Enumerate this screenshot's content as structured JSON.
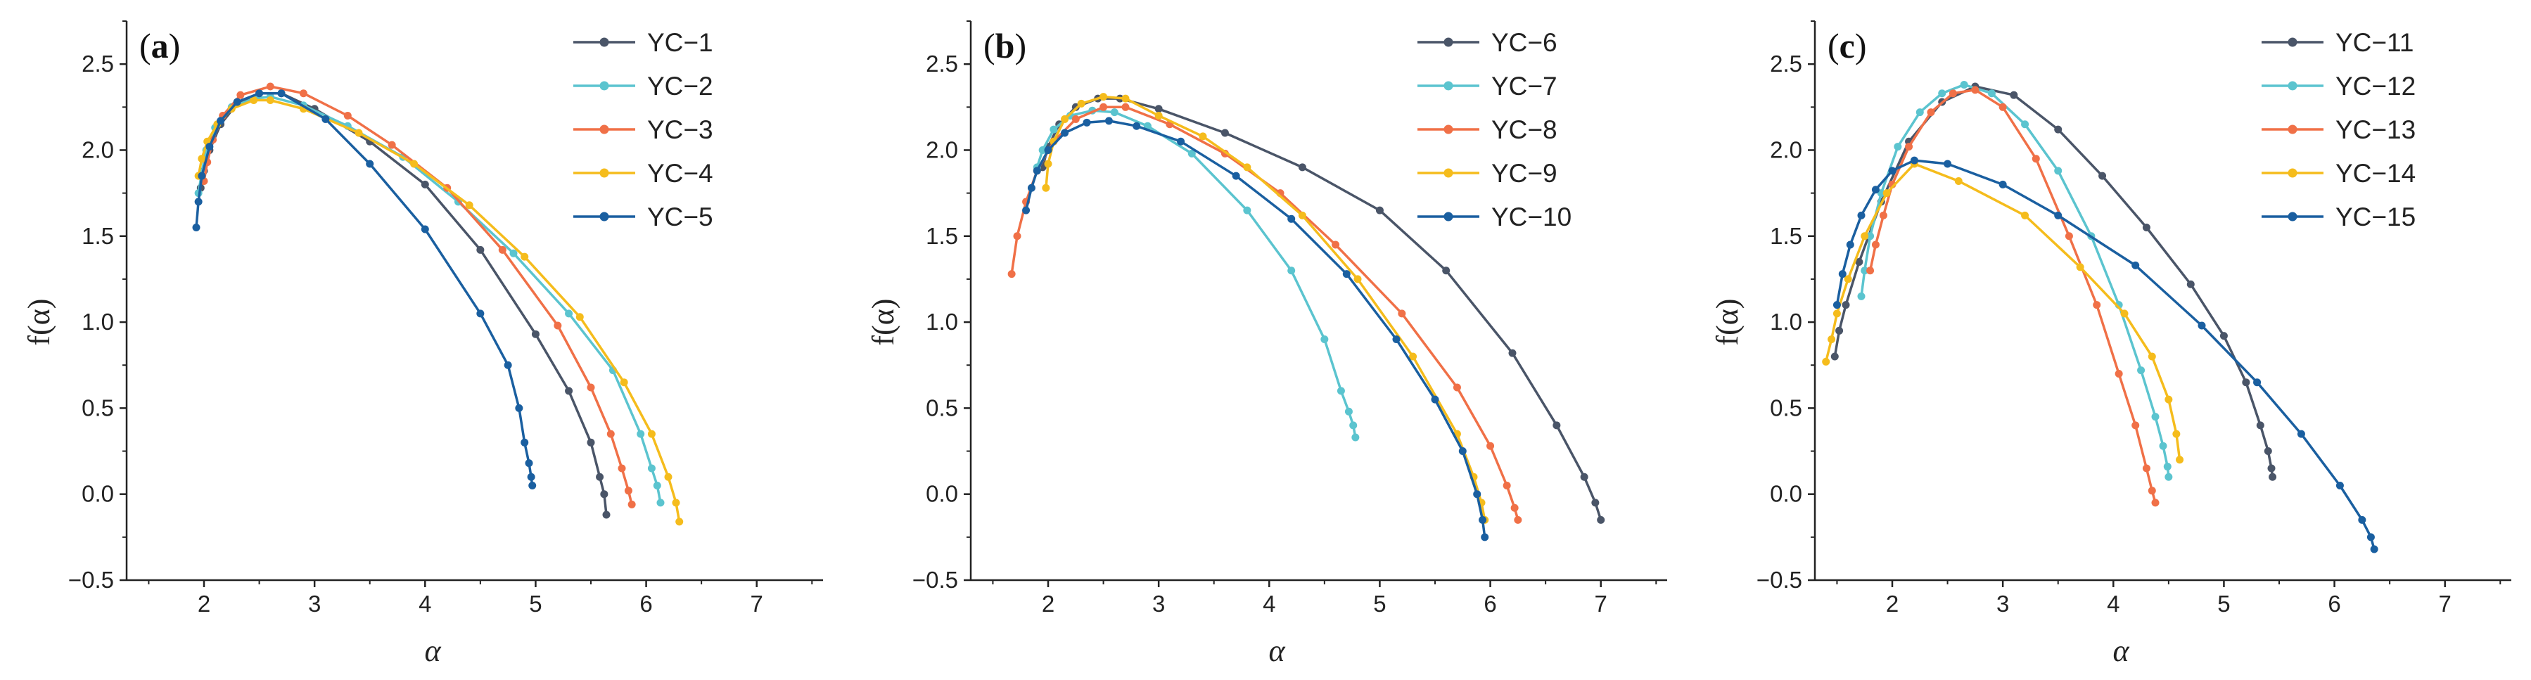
{
  "figure": {
    "colors": [
      "#4a5568",
      "#5bc4cf",
      "#f07047",
      "#f5bc1c",
      "#1a5fa0"
    ],
    "panels": [
      {
        "label": "(a)",
        "label_open": "(",
        "label_letter": "a",
        "label_close": ")",
        "xlabel": "α",
        "ylabel": "f(α)",
        "xlim": [
          1.3,
          7.6
        ],
        "ylim": [
          -0.5,
          2.75
        ],
        "xticks": [
          2,
          3,
          4,
          5,
          6,
          7
        ],
        "xtick_labels": [
          "2",
          "3",
          "4",
          "5",
          "6",
          "7"
        ],
        "yticks": [
          -0.5,
          0,
          0.5,
          1,
          1.5,
          2,
          2.5
        ],
        "ytick_labels": [
          "−0.5",
          "0.0",
          "0.5",
          "1.0",
          "1.5",
          "2.0",
          "2.5"
        ],
        "series": [
          {
            "name": "YC−1",
            "x": [
              1.97,
              2.0,
              2.05,
              2.15,
              2.3,
              2.5,
              2.7,
              3.0,
              3.5,
              4.0,
              4.5,
              5.0,
              5.3,
              5.5,
              5.58,
              5.62,
              5.64
            ],
            "y": [
              1.78,
              1.88,
              2.0,
              2.15,
              2.27,
              2.33,
              2.33,
              2.24,
              2.05,
              1.8,
              1.42,
              0.93,
              0.6,
              0.3,
              0.1,
              0.0,
              -0.12
            ]
          },
          {
            "name": "YC−2",
            "x": [
              1.95,
              1.98,
              2.02,
              2.1,
              2.25,
              2.45,
              2.6,
              2.9,
              3.3,
              3.8,
              4.3,
              4.8,
              5.3,
              5.7,
              5.95,
              6.05,
              6.1,
              6.13
            ],
            "y": [
              1.75,
              1.87,
              2.0,
              2.13,
              2.25,
              2.3,
              2.31,
              2.26,
              2.14,
              1.96,
              1.7,
              1.4,
              1.05,
              0.72,
              0.35,
              0.15,
              0.05,
              -0.05
            ]
          },
          {
            "name": "YC−3",
            "x": [
              2.0,
              2.03,
              2.08,
              2.17,
              2.33,
              2.6,
              2.9,
              3.3,
              3.7,
              4.2,
              4.7,
              5.2,
              5.5,
              5.68,
              5.78,
              5.84,
              5.87
            ],
            "y": [
              1.82,
              1.93,
              2.06,
              2.2,
              2.32,
              2.37,
              2.33,
              2.2,
              2.03,
              1.78,
              1.42,
              0.98,
              0.62,
              0.35,
              0.15,
              0.02,
              -0.06
            ]
          },
          {
            "name": "YC−4",
            "x": [
              1.95,
              1.98,
              2.03,
              2.12,
              2.25,
              2.45,
              2.6,
              2.9,
              3.4,
              3.9,
              4.4,
              4.9,
              5.4,
              5.8,
              6.05,
              6.2,
              6.27,
              6.3
            ],
            "y": [
              1.85,
              1.95,
              2.05,
              2.15,
              2.24,
              2.29,
              2.29,
              2.24,
              2.1,
              1.92,
              1.68,
              1.38,
              1.03,
              0.65,
              0.35,
              0.1,
              -0.05,
              -0.16
            ]
          },
          {
            "name": "YC−5",
            "x": [
              1.93,
              1.95,
              1.98,
              2.05,
              2.15,
              2.3,
              2.5,
              2.7,
              3.1,
              3.5,
              4.0,
              4.5,
              4.75,
              4.85,
              4.9,
              4.94,
              4.96,
              4.97
            ],
            "y": [
              1.55,
              1.7,
              1.85,
              2.02,
              2.17,
              2.28,
              2.33,
              2.33,
              2.18,
              1.92,
              1.54,
              1.05,
              0.75,
              0.5,
              0.3,
              0.18,
              0.1,
              0.05
            ]
          }
        ]
      },
      {
        "label": "(b)",
        "label_open": "(",
        "label_letter": "b",
        "label_close": ")",
        "xlabel": "α",
        "ylabel": "f(α)",
        "xlim": [
          1.3,
          7.6
        ],
        "ylim": [
          -0.5,
          2.75
        ],
        "xticks": [
          2,
          3,
          4,
          5,
          6,
          7
        ],
        "xtick_labels": [
          "2",
          "3",
          "4",
          "5",
          "6",
          "7"
        ],
        "yticks": [
          -0.5,
          0,
          0.5,
          1,
          1.5,
          2,
          2.5
        ],
        "ytick_labels": [
          "−0.5",
          "0.0",
          "0.5",
          "1.0",
          "1.5",
          "2.0",
          "2.5"
        ],
        "series": [
          {
            "name": "YC−6",
            "x": [
              1.95,
              2.0,
              2.1,
              2.25,
              2.45,
              2.65,
              3.0,
              3.6,
              4.3,
              5.0,
              5.6,
              6.2,
              6.6,
              6.85,
              6.95,
              7.0
            ],
            "y": [
              1.9,
              2.02,
              2.15,
              2.25,
              2.3,
              2.3,
              2.24,
              2.1,
              1.9,
              1.65,
              1.3,
              0.82,
              0.4,
              0.1,
              -0.05,
              -0.15
            ]
          },
          {
            "name": "YC−7",
            "x": [
              1.9,
              1.95,
              2.05,
              2.2,
              2.4,
              2.6,
              2.9,
              3.3,
              3.8,
              4.2,
              4.5,
              4.65,
              4.72,
              4.76,
              4.78
            ],
            "y": [
              1.9,
              2.0,
              2.12,
              2.2,
              2.23,
              2.22,
              2.14,
              1.98,
              1.65,
              1.3,
              0.9,
              0.6,
              0.48,
              0.4,
              0.33
            ]
          },
          {
            "name": "YC−8",
            "x": [
              1.67,
              1.72,
              1.8,
              1.9,
              2.05,
              2.25,
              2.5,
              2.7,
              3.1,
              3.6,
              4.1,
              4.6,
              5.2,
              5.7,
              6.0,
              6.15,
              6.22,
              6.25
            ],
            "y": [
              1.28,
              1.5,
              1.7,
              1.88,
              2.05,
              2.18,
              2.25,
              2.25,
              2.15,
              1.98,
              1.75,
              1.45,
              1.05,
              0.62,
              0.28,
              0.05,
              -0.08,
              -0.15
            ]
          },
          {
            "name": "YC−9",
            "x": [
              1.98,
              2.0,
              2.05,
              2.15,
              2.3,
              2.5,
              2.7,
              3.0,
              3.4,
              3.8,
              4.3,
              4.8,
              5.3,
              5.7,
              5.85,
              5.92,
              5.95
            ],
            "y": [
              1.78,
              1.92,
              2.05,
              2.18,
              2.27,
              2.31,
              2.3,
              2.2,
              2.08,
              1.9,
              1.62,
              1.25,
              0.8,
              0.35,
              0.1,
              -0.05,
              -0.15
            ]
          },
          {
            "name": "YC−10",
            "x": [
              1.8,
              1.85,
              1.9,
              2.0,
              2.15,
              2.35,
              2.55,
              2.8,
              3.2,
              3.7,
              4.2,
              4.7,
              5.15,
              5.5,
              5.75,
              5.88,
              5.93,
              5.95
            ],
            "y": [
              1.65,
              1.78,
              1.88,
              2.0,
              2.1,
              2.16,
              2.17,
              2.14,
              2.05,
              1.85,
              1.6,
              1.28,
              0.9,
              0.55,
              0.25,
              0.0,
              -0.15,
              -0.25
            ]
          }
        ]
      },
      {
        "label": "(c)",
        "label_open": "(",
        "label_letter": "c",
        "label_close": ")",
        "xlabel": "α",
        "ylabel": "f(α)",
        "xlim": [
          1.3,
          7.6
        ],
        "ylim": [
          -0.5,
          2.75
        ],
        "xticks": [
          2,
          3,
          4,
          5,
          6,
          7
        ],
        "xtick_labels": [
          "2",
          "3",
          "4",
          "5",
          "6",
          "7"
        ],
        "yticks": [
          -0.5,
          0,
          0.5,
          1,
          1.5,
          2,
          2.5
        ],
        "ytick_labels": [
          "−0.5",
          "0.0",
          "0.5",
          "1.0",
          "1.5",
          "2.0",
          "2.5"
        ],
        "series": [
          {
            "name": "YC−11",
            "x": [
              1.48,
              1.52,
              1.58,
              1.7,
              1.9,
              2.15,
              2.45,
              2.75,
              3.1,
              3.5,
              3.9,
              4.3,
              4.7,
              5.0,
              5.2,
              5.33,
              5.4,
              5.43,
              5.44
            ],
            "y": [
              0.8,
              0.95,
              1.1,
              1.35,
              1.7,
              2.05,
              2.28,
              2.37,
              2.32,
              2.12,
              1.85,
              1.55,
              1.22,
              0.92,
              0.65,
              0.4,
              0.25,
              0.15,
              0.1
            ]
          },
          {
            "name": "YC−12",
            "x": [
              1.72,
              1.75,
              1.8,
              1.9,
              2.05,
              2.25,
              2.45,
              2.65,
              2.9,
              3.2,
              3.5,
              3.8,
              4.05,
              4.25,
              4.38,
              4.45,
              4.49,
              4.5
            ],
            "y": [
              1.15,
              1.3,
              1.5,
              1.75,
              2.02,
              2.22,
              2.33,
              2.38,
              2.33,
              2.15,
              1.88,
              1.5,
              1.1,
              0.72,
              0.45,
              0.28,
              0.16,
              0.1
            ]
          },
          {
            "name": "YC−13",
            "x": [
              1.8,
              1.85,
              1.92,
              2.0,
              2.15,
              2.35,
              2.55,
              2.75,
              3.0,
              3.3,
              3.6,
              3.85,
              4.05,
              4.2,
              4.3,
              4.35,
              4.38
            ],
            "y": [
              1.3,
              1.45,
              1.62,
              1.8,
              2.02,
              2.22,
              2.33,
              2.35,
              2.25,
              1.95,
              1.5,
              1.1,
              0.7,
              0.4,
              0.15,
              0.02,
              -0.05
            ]
          },
          {
            "name": "YC−14",
            "x": [
              1.4,
              1.45,
              1.5,
              1.6,
              1.75,
              1.95,
              2.2,
              2.6,
              3.2,
              3.7,
              4.1,
              4.35,
              4.5,
              4.57,
              4.6
            ],
            "y": [
              0.77,
              0.9,
              1.05,
              1.25,
              1.5,
              1.75,
              1.92,
              1.82,
              1.62,
              1.32,
              1.05,
              0.8,
              0.55,
              0.35,
              0.2
            ]
          },
          {
            "name": "YC−15",
            "x": [
              1.5,
              1.55,
              1.62,
              1.72,
              1.85,
              2.0,
              2.2,
              2.5,
              3.0,
              3.5,
              4.2,
              4.8,
              5.3,
              5.7,
              6.05,
              6.25,
              6.33,
              6.36
            ],
            "y": [
              1.1,
              1.28,
              1.45,
              1.62,
              1.77,
              1.88,
              1.94,
              1.92,
              1.8,
              1.62,
              1.33,
              0.98,
              0.65,
              0.35,
              0.05,
              -0.15,
              -0.25,
              -0.32
            ]
          }
        ]
      }
    ]
  },
  "chart_data": [
    {
      "type": "line",
      "title": "(a)",
      "xlabel": "α",
      "ylabel": "f(α)",
      "xlim": [
        1.3,
        7.6
      ],
      "ylim": [
        -0.5,
        2.75
      ],
      "legend": "top-right",
      "series_names": [
        "YC−1",
        "YC−2",
        "YC−3",
        "YC−4",
        "YC−5"
      ]
    },
    {
      "type": "line",
      "title": "(b)",
      "xlabel": "α",
      "ylabel": "f(α)",
      "xlim": [
        1.3,
        7.6
      ],
      "ylim": [
        -0.5,
        2.75
      ],
      "legend": "top-right",
      "series_names": [
        "YC−6",
        "YC−7",
        "YC−8",
        "YC−9",
        "YC−10"
      ]
    },
    {
      "type": "line",
      "title": "(c)",
      "xlabel": "α",
      "ylabel": "f(α)",
      "xlim": [
        1.3,
        7.6
      ],
      "ylim": [
        -0.5,
        2.75
      ],
      "legend": "top-right",
      "series_names": [
        "YC−11",
        "YC−12",
        "YC−13",
        "YC−14",
        "YC−15"
      ]
    }
  ]
}
